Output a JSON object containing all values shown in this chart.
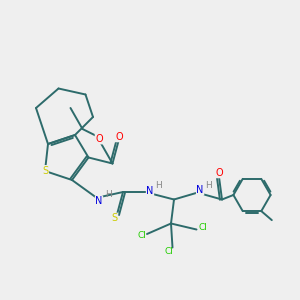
{
  "background_color": "#efefef",
  "bond_color": "#2d6b6b",
  "atom_colors": {
    "S": "#cccc00",
    "O": "#ff0000",
    "N": "#0000dd",
    "Cl": "#22cc00",
    "H": "#888888"
  },
  "figsize": [
    3.0,
    3.0
  ],
  "dpi": 100,
  "lw": 1.4,
  "fs": 7.0
}
